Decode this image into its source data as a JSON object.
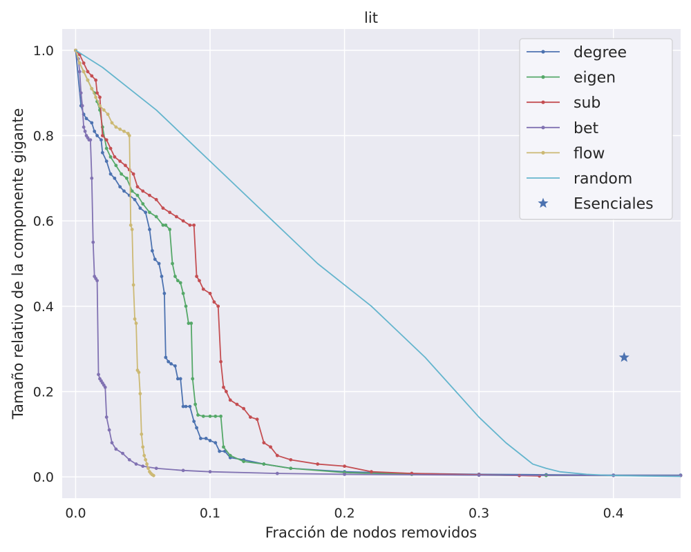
{
  "chart_data": {
    "type": "line",
    "title": "lit",
    "xlabel": "Fracción de nodos removidos",
    "ylabel": "Tamaño relativo de la componente gigante",
    "xlim": [
      -0.01,
      0.45
    ],
    "ylim": [
      -0.05,
      1.05
    ],
    "xticks": [
      0.0,
      0.1,
      0.2,
      0.3,
      0.4
    ],
    "yticks": [
      0.0,
      0.2,
      0.4,
      0.6,
      0.8,
      1.0
    ],
    "xtick_labels": [
      "0.0",
      "0.1",
      "0.2",
      "0.3",
      "0.4"
    ],
    "ytick_labels": [
      "0.0",
      "0.2",
      "0.4",
      "0.6",
      "0.8",
      "1.0"
    ],
    "grid": true,
    "legend_position": "top-right",
    "series": [
      {
        "name": "degree",
        "color": "#4c72b0",
        "marker": "dot",
        "x": [
          0.0,
          0.004,
          0.006,
          0.008,
          0.012,
          0.014,
          0.016,
          0.019,
          0.02,
          0.023,
          0.026,
          0.029,
          0.033,
          0.036,
          0.04,
          0.044,
          0.048,
          0.052,
          0.055,
          0.057,
          0.059,
          0.062,
          0.064,
          0.066,
          0.067,
          0.069,
          0.071,
          0.074,
          0.076,
          0.078,
          0.08,
          0.082,
          0.085,
          0.088,
          0.09,
          0.093,
          0.097,
          0.1,
          0.104,
          0.107,
          0.111,
          0.115,
          0.125,
          0.14,
          0.16,
          0.2,
          0.25,
          0.3,
          0.35,
          0.4,
          0.45
        ],
        "y": [
          1.0,
          0.87,
          0.85,
          0.84,
          0.83,
          0.81,
          0.8,
          0.79,
          0.76,
          0.74,
          0.71,
          0.7,
          0.68,
          0.67,
          0.66,
          0.65,
          0.63,
          0.62,
          0.58,
          0.53,
          0.51,
          0.5,
          0.47,
          0.43,
          0.28,
          0.27,
          0.265,
          0.26,
          0.23,
          0.23,
          0.165,
          0.165,
          0.165,
          0.13,
          0.115,
          0.09,
          0.09,
          0.085,
          0.08,
          0.06,
          0.06,
          0.045,
          0.04,
          0.03,
          0.02,
          0.012,
          0.008,
          0.006,
          0.005,
          0.004,
          0.004
        ]
      },
      {
        "name": "eigen",
        "color": "#55a868",
        "marker": "dot",
        "x": [
          0.0,
          0.003,
          0.006,
          0.009,
          0.012,
          0.014,
          0.016,
          0.018,
          0.02,
          0.023,
          0.026,
          0.03,
          0.034,
          0.038,
          0.042,
          0.046,
          0.05,
          0.055,
          0.06,
          0.065,
          0.067,
          0.07,
          0.072,
          0.074,
          0.076,
          0.078,
          0.08,
          0.082,
          0.084,
          0.086,
          0.087,
          0.089,
          0.091,
          0.095,
          0.1,
          0.104,
          0.108,
          0.11,
          0.115,
          0.125,
          0.14,
          0.16,
          0.2,
          0.25,
          0.3,
          0.35,
          0.45
        ],
        "y": [
          1.0,
          0.97,
          0.95,
          0.93,
          0.91,
          0.9,
          0.88,
          0.86,
          0.82,
          0.77,
          0.75,
          0.73,
          0.71,
          0.7,
          0.67,
          0.66,
          0.64,
          0.62,
          0.61,
          0.59,
          0.59,
          0.58,
          0.5,
          0.47,
          0.46,
          0.455,
          0.43,
          0.4,
          0.36,
          0.36,
          0.23,
          0.17,
          0.145,
          0.142,
          0.142,
          0.142,
          0.142,
          0.07,
          0.05,
          0.036,
          0.03,
          0.02,
          0.01,
          0.006,
          0.004,
          0.003,
          0.003
        ]
      },
      {
        "name": "sub",
        "color": "#c44e52",
        "marker": "dot",
        "x": [
          0.0,
          0.003,
          0.006,
          0.009,
          0.012,
          0.015,
          0.016,
          0.018,
          0.02,
          0.023,
          0.026,
          0.029,
          0.033,
          0.037,
          0.04,
          0.043,
          0.046,
          0.05,
          0.055,
          0.06,
          0.065,
          0.07,
          0.075,
          0.08,
          0.085,
          0.088,
          0.09,
          0.092,
          0.095,
          0.1,
          0.103,
          0.106,
          0.108,
          0.11,
          0.112,
          0.115,
          0.12,
          0.125,
          0.13,
          0.135,
          0.14,
          0.145,
          0.15,
          0.16,
          0.18,
          0.2,
          0.22,
          0.25,
          0.3,
          0.33,
          0.345
        ],
        "y": [
          1.0,
          0.99,
          0.97,
          0.95,
          0.94,
          0.93,
          0.9,
          0.89,
          0.8,
          0.79,
          0.77,
          0.75,
          0.74,
          0.73,
          0.72,
          0.71,
          0.68,
          0.67,
          0.66,
          0.65,
          0.63,
          0.62,
          0.61,
          0.6,
          0.59,
          0.59,
          0.47,
          0.46,
          0.44,
          0.43,
          0.41,
          0.4,
          0.27,
          0.21,
          0.2,
          0.18,
          0.17,
          0.16,
          0.14,
          0.135,
          0.08,
          0.07,
          0.05,
          0.04,
          0.03,
          0.025,
          0.012,
          0.008,
          0.005,
          0.003,
          0.002
        ]
      },
      {
        "name": "bet",
        "color": "#8172b2",
        "marker": "dot",
        "x": [
          0.0,
          0.002,
          0.003,
          0.004,
          0.005,
          0.006,
          0.007,
          0.008,
          0.009,
          0.01,
          0.011,
          0.012,
          0.013,
          0.014,
          0.015,
          0.016,
          0.017,
          0.018,
          0.019,
          0.02,
          0.021,
          0.022,
          0.023,
          0.025,
          0.027,
          0.03,
          0.035,
          0.04,
          0.045,
          0.05,
          0.06,
          0.08,
          0.1,
          0.15,
          0.2,
          0.3,
          0.4,
          0.45
        ],
        "y": [
          1.0,
          0.98,
          0.95,
          0.9,
          0.87,
          0.82,
          0.81,
          0.8,
          0.795,
          0.79,
          0.79,
          0.7,
          0.55,
          0.47,
          0.465,
          0.46,
          0.24,
          0.23,
          0.225,
          0.22,
          0.215,
          0.21,
          0.14,
          0.11,
          0.08,
          0.065,
          0.055,
          0.04,
          0.03,
          0.025,
          0.02,
          0.015,
          0.012,
          0.008,
          0.006,
          0.004,
          0.003,
          0.003
        ]
      },
      {
        "name": "flow",
        "color": "#ccb974",
        "marker": "dot",
        "x": [
          0.0,
          0.003,
          0.006,
          0.009,
          0.012,
          0.015,
          0.018,
          0.021,
          0.024,
          0.027,
          0.03,
          0.033,
          0.036,
          0.039,
          0.04,
          0.041,
          0.042,
          0.043,
          0.044,
          0.045,
          0.046,
          0.047,
          0.048,
          0.049,
          0.05,
          0.051,
          0.052,
          0.053,
          0.054,
          0.055,
          0.056,
          0.057,
          0.058
        ],
        "y": [
          1.0,
          0.97,
          0.95,
          0.93,
          0.91,
          0.89,
          0.87,
          0.86,
          0.85,
          0.83,
          0.82,
          0.815,
          0.81,
          0.805,
          0.8,
          0.59,
          0.58,
          0.45,
          0.37,
          0.36,
          0.25,
          0.245,
          0.195,
          0.1,
          0.07,
          0.05,
          0.04,
          0.03,
          0.02,
          0.012,
          0.008,
          0.005,
          0.003
        ]
      },
      {
        "name": "random",
        "color": "#64b5cd",
        "marker": "none",
        "x": [
          0.0,
          0.02,
          0.04,
          0.06,
          0.08,
          0.1,
          0.12,
          0.14,
          0.16,
          0.18,
          0.2,
          0.22,
          0.24,
          0.26,
          0.28,
          0.3,
          0.32,
          0.34,
          0.35,
          0.36,
          0.38,
          0.4,
          0.42,
          0.45
        ],
        "y": [
          1.0,
          0.96,
          0.91,
          0.86,
          0.8,
          0.74,
          0.68,
          0.62,
          0.56,
          0.5,
          0.45,
          0.4,
          0.34,
          0.28,
          0.21,
          0.14,
          0.08,
          0.03,
          0.02,
          0.012,
          0.006,
          0.003,
          0.002,
          0.001
        ]
      },
      {
        "name": "Esenciales",
        "color": "#4c72b0",
        "marker": "star",
        "x": [
          0.408
        ],
        "y": [
          0.28
        ]
      }
    ]
  }
}
